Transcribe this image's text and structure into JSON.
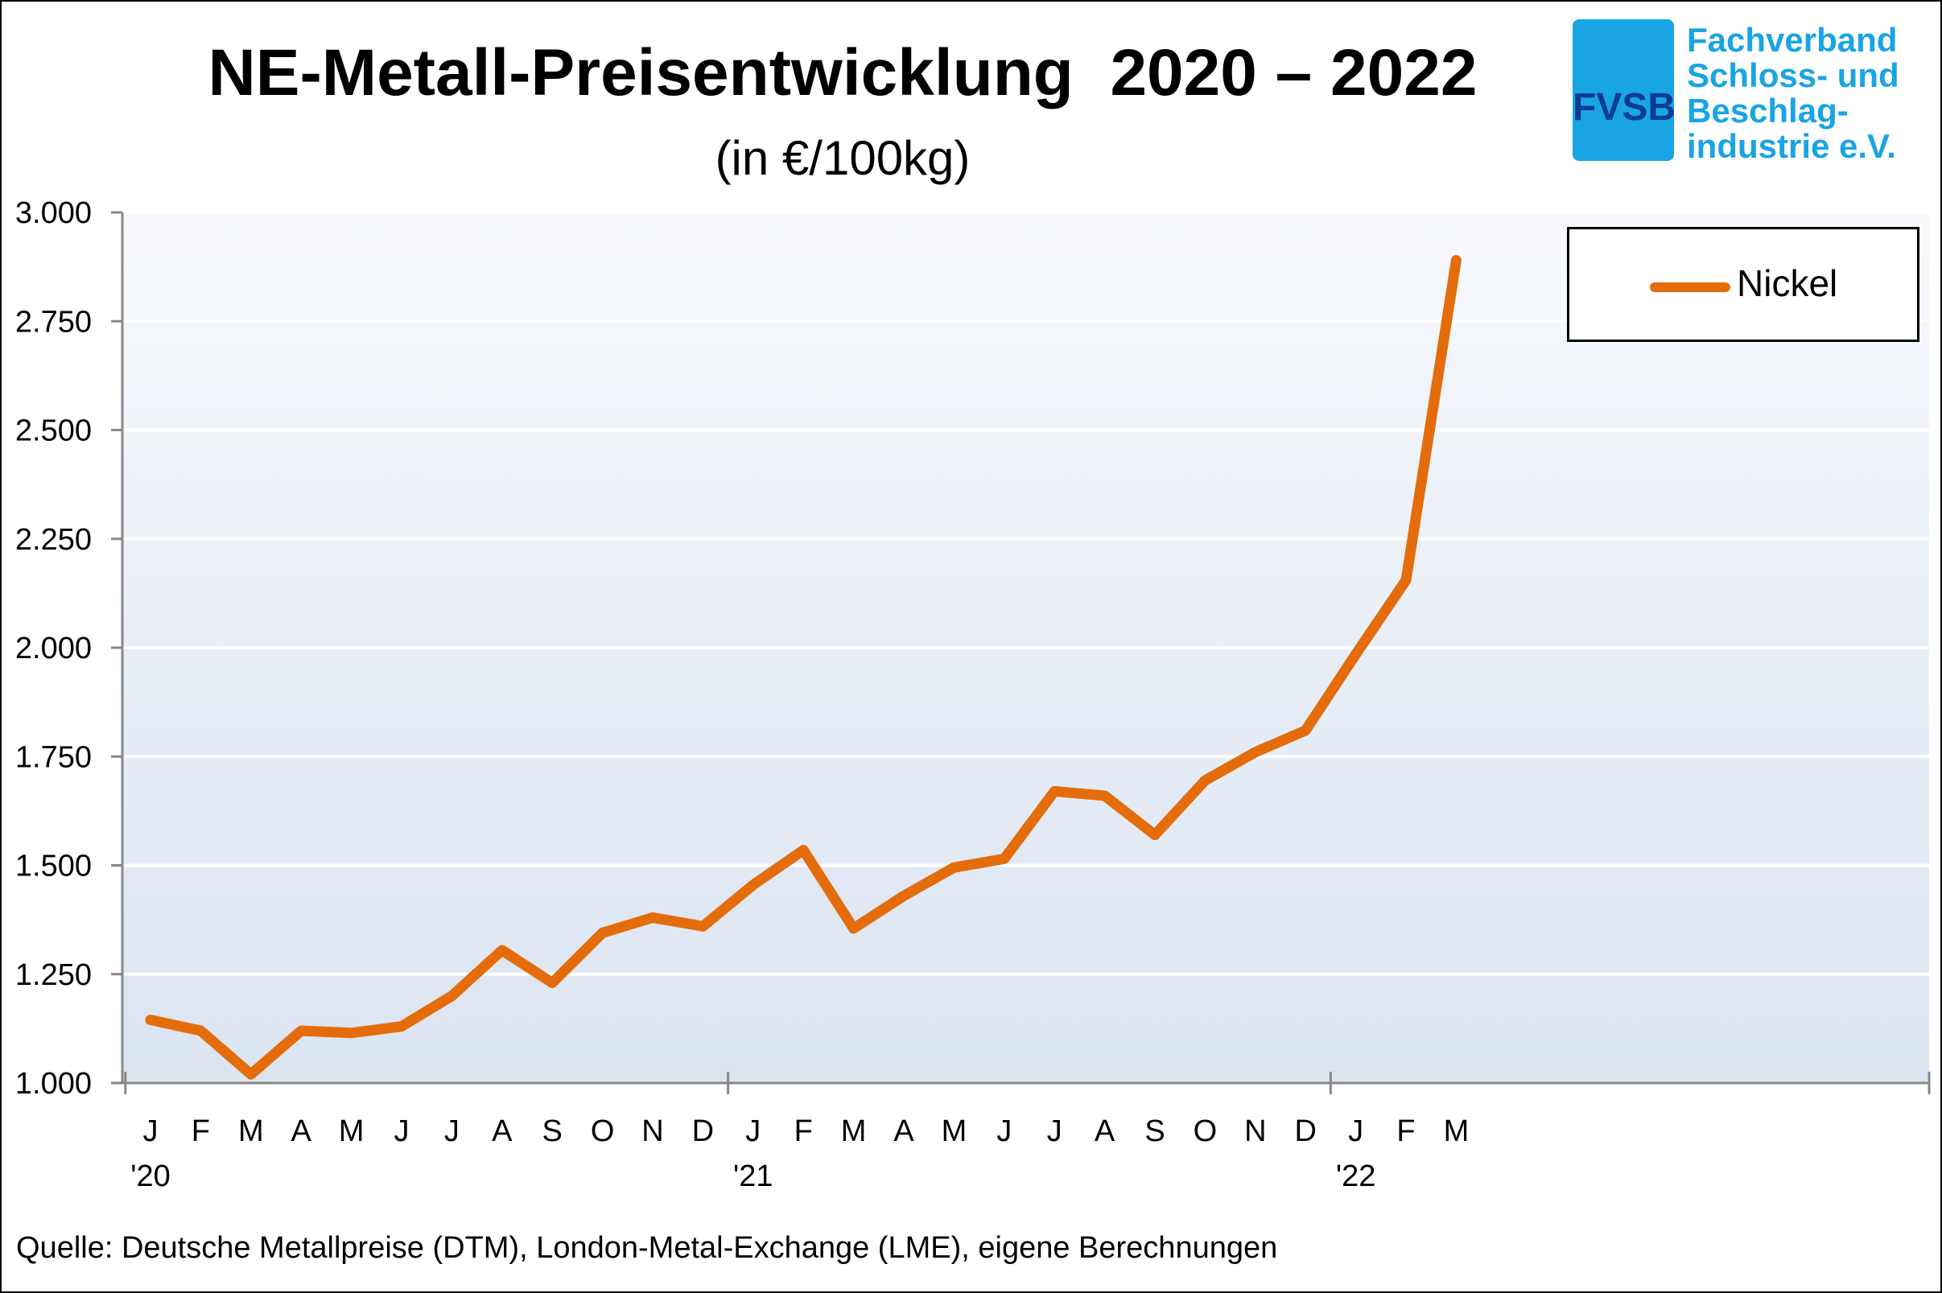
{
  "title": "NE-Metall-Preisentwicklung  2020 – 2022",
  "subtitle": "(in €/100kg)",
  "logo": {
    "abbr": "FVSB",
    "lines": [
      "Fachverband",
      "Schloss- und",
      "Beschlag-",
      "industrie e.V."
    ]
  },
  "source": "Quelle: Deutsche Metallpreise (DTM), London-Metal-Exchange (LME), eigene Berechnungen",
  "chart_data": {
    "type": "line",
    "x_months": [
      "J",
      "F",
      "M",
      "A",
      "M",
      "J",
      "J",
      "A",
      "S",
      "O",
      "N",
      "D",
      "J",
      "F",
      "M",
      "A",
      "M",
      "J",
      "J",
      "A",
      "S",
      "O",
      "N",
      "D",
      "J",
      "F",
      "M"
    ],
    "year_labels": [
      {
        "label": "'20",
        "at_index": 0
      },
      {
        "label": "'21",
        "at_index": 12
      },
      {
        "label": "'22",
        "at_index": 24
      }
    ],
    "y_ticks": [
      "1.000",
      "1.250",
      "1.500",
      "1.750",
      "2.000",
      "2.250",
      "2.500",
      "2.750",
      "3.000"
    ],
    "ylim": [
      1000,
      3000
    ],
    "grid": true,
    "legend_position": "top-right",
    "series": [
      {
        "name": "Nickel",
        "color": "#e46c0a",
        "values": [
          1145,
          1120,
          1020,
          1120,
          1115,
          1130,
          1200,
          1305,
          1230,
          1345,
          1380,
          1360,
          1455,
          1535,
          1355,
          1430,
          1495,
          1515,
          1670,
          1660,
          1570,
          1695,
          1760,
          1810,
          1985,
          2155,
          2890
        ]
      }
    ]
  }
}
